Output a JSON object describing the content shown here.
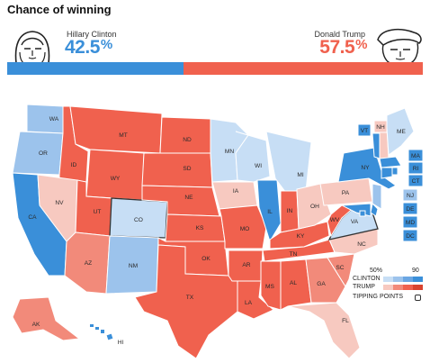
{
  "header": {
    "title": "Chance of winning"
  },
  "candidates": {
    "clinton": {
      "name": "Hillary Clinton",
      "pct": "42.5",
      "pct_sign": "%",
      "share": 0.425,
      "color": "#3a8fd9"
    },
    "trump": {
      "name": "Donald Trump",
      "pct": "57.5",
      "pct_sign": "%",
      "share": 0.575,
      "color": "#f0614e"
    }
  },
  "states": [
    {
      "abbr": "WA",
      "color": "#9cc3ec"
    },
    {
      "abbr": "OR",
      "color": "#9cc3ec"
    },
    {
      "abbr": "CA",
      "color": "#3a8fd9"
    },
    {
      "abbr": "ID",
      "color": "#f0614e"
    },
    {
      "abbr": "NV",
      "color": "#f7c9c0"
    },
    {
      "abbr": "MT",
      "color": "#f0614e"
    },
    {
      "abbr": "WY",
      "color": "#f0614e"
    },
    {
      "abbr": "UT",
      "color": "#f0614e"
    },
    {
      "abbr": "AZ",
      "color": "#f28a7a"
    },
    {
      "abbr": "CO",
      "color": "#c7def5"
    },
    {
      "abbr": "NM",
      "color": "#9cc3ec"
    },
    {
      "abbr": "ND",
      "color": "#f0614e"
    },
    {
      "abbr": "SD",
      "color": "#f0614e"
    },
    {
      "abbr": "NE",
      "color": "#f0614e"
    },
    {
      "abbr": "KS",
      "color": "#f0614e"
    },
    {
      "abbr": "OK",
      "color": "#f0614e"
    },
    {
      "abbr": "TX",
      "color": "#f0614e"
    },
    {
      "abbr": "MN",
      "color": "#c7def5"
    },
    {
      "abbr": "IA",
      "color": "#f7c9c0"
    },
    {
      "abbr": "MO",
      "color": "#f0614e"
    },
    {
      "abbr": "AR",
      "color": "#f0614e"
    },
    {
      "abbr": "LA",
      "color": "#f0614e"
    },
    {
      "abbr": "WI",
      "color": "#c7def5"
    },
    {
      "abbr": "IL",
      "color": "#3a8fd9"
    },
    {
      "abbr": "MS",
      "color": "#f0614e"
    },
    {
      "abbr": "MI",
      "color": "#c7def5"
    },
    {
      "abbr": "IN",
      "color": "#f0614e"
    },
    {
      "abbr": "KY",
      "color": "#f0614e"
    },
    {
      "abbr": "TN",
      "color": "#f0614e"
    },
    {
      "abbr": "AL",
      "color": "#f0614e"
    },
    {
      "abbr": "OH",
      "color": "#f7c9c0"
    },
    {
      "abbr": "GA",
      "color": "#f28a7a"
    },
    {
      "abbr": "FL",
      "color": "#f7c9c0"
    },
    {
      "abbr": "SC",
      "color": "#f28a7a"
    },
    {
      "abbr": "NC",
      "color": "#f7c9c0"
    },
    {
      "abbr": "VA",
      "color": "#c7def5"
    },
    {
      "abbr": "WV",
      "color": "#f0614e"
    },
    {
      "abbr": "PA",
      "color": "#f7c9c0"
    },
    {
      "abbr": "NY",
      "color": "#3a8fd9"
    },
    {
      "abbr": "VT",
      "color": "#3a8fd9"
    },
    {
      "abbr": "NH",
      "color": "#f7c9c0"
    },
    {
      "abbr": "ME",
      "color": "#c7def5"
    },
    {
      "abbr": "MA",
      "color": "#3a8fd9"
    },
    {
      "abbr": "RI",
      "color": "#3a8fd9"
    },
    {
      "abbr": "CT",
      "color": "#3a8fd9"
    },
    {
      "abbr": "NJ",
      "color": "#9cc3ec"
    },
    {
      "abbr": "DE",
      "color": "#3a8fd9"
    },
    {
      "abbr": "MD",
      "color": "#3a8fd9"
    },
    {
      "abbr": "DC",
      "color": "#3a8fd9"
    },
    {
      "abbr": "AK",
      "color": "#f28a7a"
    },
    {
      "abbr": "HI",
      "color": "#3a8fd9"
    }
  ],
  "tipping_points": [
    "CO",
    "VA"
  ],
  "legend": {
    "tick_low": "50%",
    "tick_high": "90",
    "clinton_label": "CLINTON",
    "trump_label": "TRUMP",
    "tipping_label": "TIPPING POINTS",
    "clinton_colors": [
      "#c7def5",
      "#9cc3ec",
      "#6aa6e3",
      "#3a8fd9"
    ],
    "trump_colors": [
      "#f7c9c0",
      "#f28a7a",
      "#f0614e",
      "#d9432f"
    ]
  }
}
